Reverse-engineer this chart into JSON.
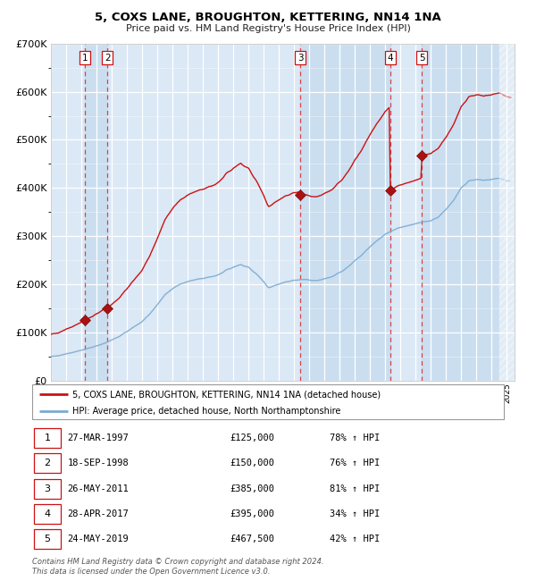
{
  "title": "5, COXS LANE, BROUGHTON, KETTERING, NN14 1NA",
  "subtitle": "Price paid vs. HM Land Registry's House Price Index (HPI)",
  "sales": [
    {
      "label": "1",
      "date_year": 1997.23,
      "price": 125000
    },
    {
      "label": "2",
      "date_year": 1998.71,
      "price": 150000
    },
    {
      "label": "3",
      "date_year": 2011.4,
      "price": 385000
    },
    {
      "label": "4",
      "date_year": 2017.32,
      "price": 395000
    },
    {
      "label": "5",
      "date_year": 2019.4,
      "price": 467500
    }
  ],
  "table_rows": [
    {
      "num": "1",
      "date": "27-MAR-1997",
      "price": "£125,000",
      "hpi": "78% ↑ HPI"
    },
    {
      "num": "2",
      "date": "18-SEP-1998",
      "price": "£150,000",
      "hpi": "76% ↑ HPI"
    },
    {
      "num": "3",
      "date": "26-MAY-2011",
      "price": "£385,000",
      "hpi": "81% ↑ HPI"
    },
    {
      "num": "4",
      "date": "28-APR-2017",
      "price": "£395,000",
      "hpi": "34% ↑ HPI"
    },
    {
      "num": "5",
      "date": "24-MAY-2019",
      "price": "£467,500",
      "hpi": "42% ↑ HPI"
    }
  ],
  "legend_line1": "5, COXS LANE, BROUGHTON, KETTERING, NN14 1NA (detached house)",
  "legend_line2": "HPI: Average price, detached house, North Northamptonshire",
  "footer": "Contains HM Land Registry data © Crown copyright and database right 2024.\nThis data is licensed under the Open Government Licence v3.0.",
  "hpi_color": "#7aaad0",
  "price_color": "#cc1111",
  "bg_color": "#dbe8f5",
  "ownership_color": "#c8ddf0",
  "grid_color": "white",
  "vline_color": "#dd3333",
  "ylim": [
    0,
    700000
  ],
  "xlim_start": 1995.0,
  "xlim_end": 2025.5
}
